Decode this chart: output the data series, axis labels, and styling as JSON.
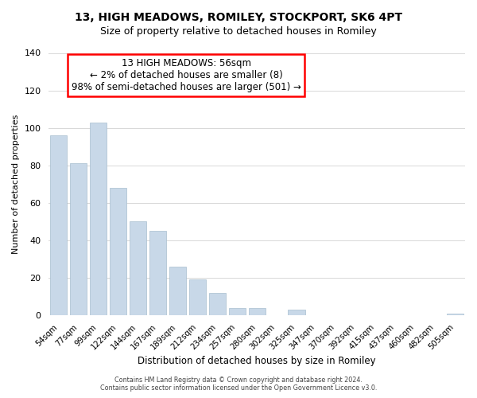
{
  "title": "13, HIGH MEADOWS, ROMILEY, STOCKPORT, SK6 4PT",
  "subtitle": "Size of property relative to detached houses in Romiley",
  "xlabel": "Distribution of detached houses by size in Romiley",
  "ylabel": "Number of detached properties",
  "bar_color": "#c8d8e8",
  "bar_edge_color": "#a8bece",
  "categories": [
    "54sqm",
    "77sqm",
    "99sqm",
    "122sqm",
    "144sqm",
    "167sqm",
    "189sqm",
    "212sqm",
    "234sqm",
    "257sqm",
    "280sqm",
    "302sqm",
    "325sqm",
    "347sqm",
    "370sqm",
    "392sqm",
    "415sqm",
    "437sqm",
    "460sqm",
    "482sqm",
    "505sqm"
  ],
  "values": [
    96,
    81,
    103,
    68,
    50,
    45,
    26,
    19,
    12,
    4,
    4,
    0,
    3,
    0,
    0,
    0,
    0,
    0,
    0,
    0,
    1
  ],
  "ylim": [
    0,
    140
  ],
  "yticks": [
    0,
    20,
    40,
    60,
    80,
    100,
    120,
    140
  ],
  "annotation_title": "13 HIGH MEADOWS: 56sqm",
  "annotation_line2": "← 2% of detached houses are smaller (8)",
  "annotation_line3": "98% of semi-detached houses are larger (501) →",
  "footer_line1": "Contains HM Land Registry data © Crown copyright and database right 2024.",
  "footer_line2": "Contains public sector information licensed under the Open Government Licence v3.0.",
  "background_color": "#ffffff",
  "grid_color": "#d8d8d8"
}
